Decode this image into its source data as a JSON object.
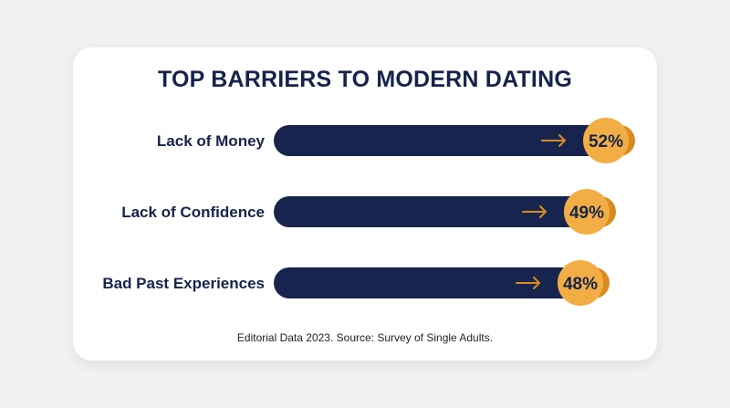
{
  "colors": {
    "bar": "#17254e",
    "accent": "#d98b1f",
    "circle": "#f2ae44",
    "text": "#16234b"
  },
  "icon": "arrow-right-icon",
  "chart_data": {
    "type": "bar",
    "orientation": "horizontal",
    "title": "TOP BARRIERS TO MODERN DATING",
    "categories": [
      "Lack of Money",
      "Lack of Confidence",
      "Bad Past Experiences"
    ],
    "values": [
      52,
      49,
      48
    ],
    "value_labels": [
      "52%",
      "49%",
      "48%"
    ],
    "unit": "%",
    "source": "Editorial Data 2023. Source: Survey of Single Adults.",
    "grid": false,
    "legend": "none"
  }
}
